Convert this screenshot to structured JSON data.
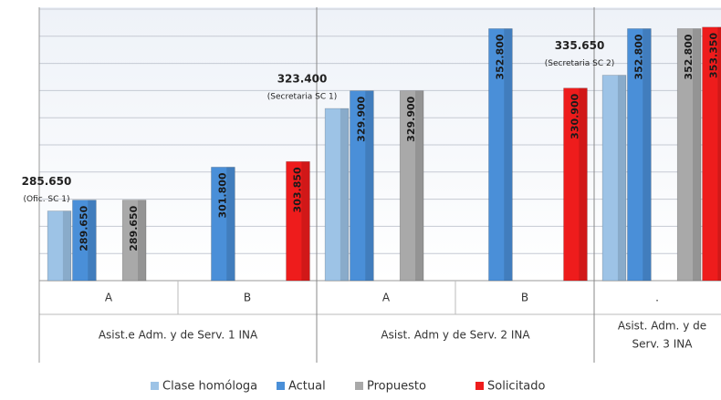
{
  "chart_data": {
    "type": "bar",
    "categories": [
      "A",
      "B",
      "A",
      "B",
      "."
    ],
    "groups": [
      {
        "label": [
          "Asist.e Adm. y de Serv. 1 INA"
        ],
        "span": 2
      },
      {
        "label": [
          "Asist. Adm y de Serv. 2 INA"
        ],
        "span": 2
      },
      {
        "label": [
          "Asist. Adm. y de",
          "Serv. 3 INA"
        ],
        "span": 1
      }
    ],
    "series": [
      {
        "name": "Clase homóloga",
        "color": "#9dc3e6",
        "values": [
          285650,
          null,
          323400,
          null,
          335650
        ],
        "value_labels": [
          "285.650",
          null,
          "323.400",
          null,
          "335.650"
        ],
        "annotations": [
          "(Ofic. SC 1)",
          null,
          "(Secretaria SC 1)",
          null,
          "(Secretaria SC 2)"
        ]
      },
      {
        "name": "Actual",
        "color": "#4a8fd8",
        "values": [
          289650,
          301800,
          329900,
          352800,
          352800
        ],
        "value_labels": [
          "289.650",
          "301.800",
          "329.900",
          "352.800",
          "352.800"
        ]
      },
      {
        "name": "Propuesto",
        "color": "#a9a9a9",
        "values": [
          289650,
          null,
          329900,
          null,
          352800
        ],
        "value_labels": [
          "289.650",
          null,
          "329.900",
          null,
          "352.800"
        ]
      },
      {
        "name": "Solicitado",
        "color": "#ee1c1c",
        "values": [
          null,
          303850,
          null,
          330900,
          353350
        ],
        "value_labels": [
          null,
          "303.850",
          null,
          "330.900",
          "353.350"
        ]
      }
    ],
    "ylim": [
      260000,
      360000
    ],
    "yticks": [
      260000,
      270000,
      280000,
      290000,
      300000,
      310000,
      320000,
      330000,
      340000,
      350000,
      360000
    ],
    "grid": true,
    "legend": "bottom"
  }
}
